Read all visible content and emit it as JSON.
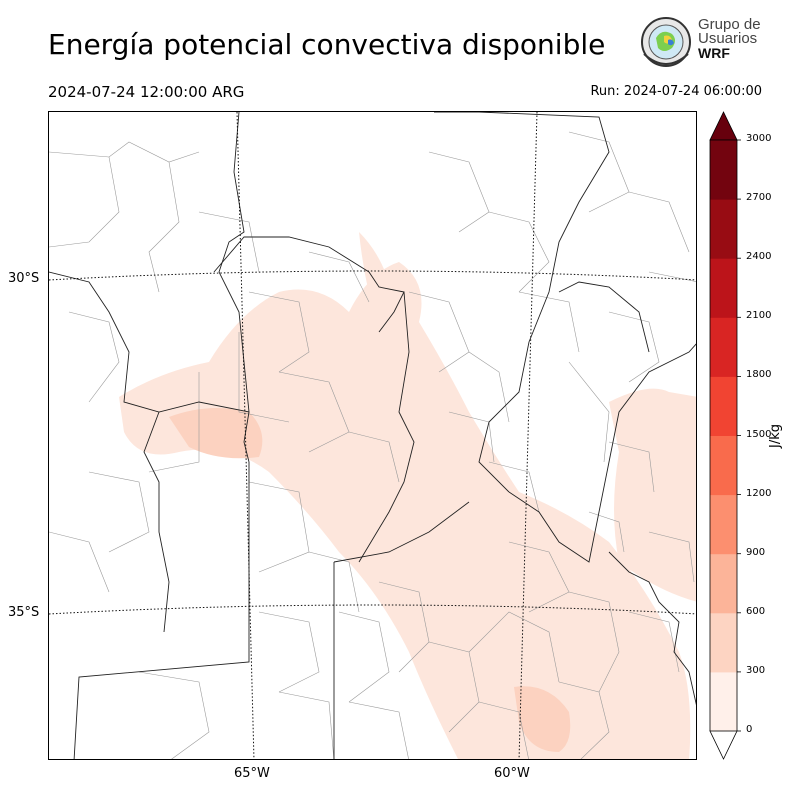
{
  "header": {
    "title": "Energía potencial convectiva disponible",
    "valid_time": "2024-07-24 12:00:00 ARG",
    "run_time": "Run: 2024-07-24 06:00:00"
  },
  "logo": {
    "line1": "Grupo de",
    "line2": "Usuarios",
    "line3": "WRF"
  },
  "map": {
    "latitude_labels": [
      "30°S",
      "35°S"
    ],
    "longitude_labels": [
      "65°W",
      "60°W"
    ]
  },
  "colorbar": {
    "units": "J/kg",
    "levels": [
      "0",
      "300",
      "600",
      "900",
      "1200",
      "1500",
      "1800",
      "2100",
      "2400",
      "2700",
      "3000"
    ],
    "colors": [
      "#fff0ea",
      "#fdd4c2",
      "#fcb499",
      "#fc8f6f",
      "#f96b4c",
      "#f14432",
      "#d92523",
      "#bc141a",
      "#980c13",
      "#73040f"
    ],
    "extend_color": "#67000d"
  }
}
